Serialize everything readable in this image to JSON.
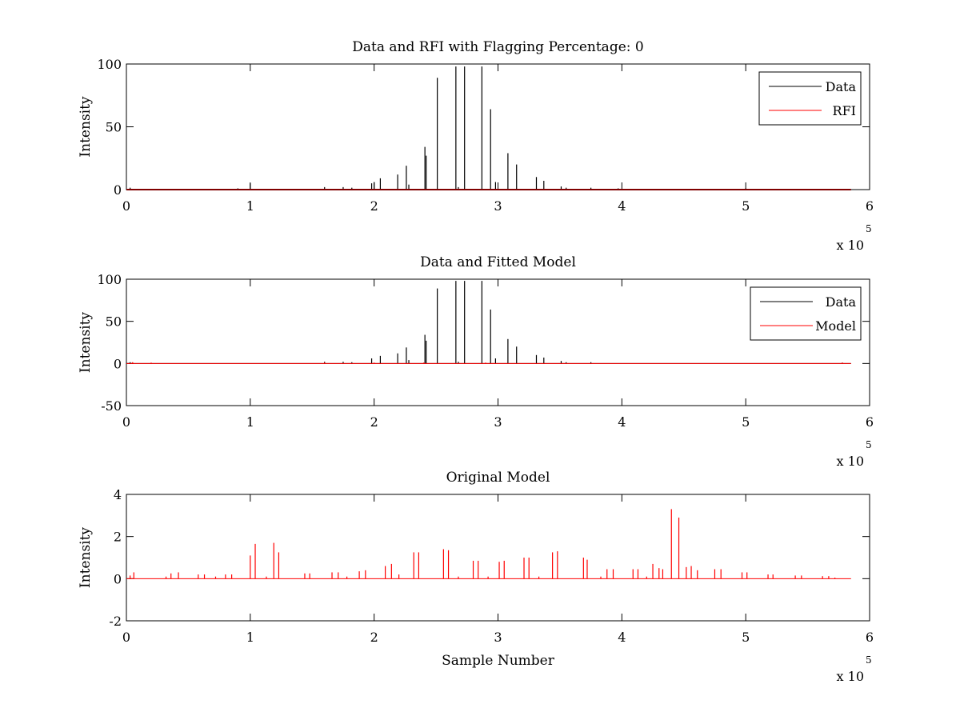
{
  "chart_data": [
    {
      "type": "line",
      "title": "Data and RFI with Flagging Percentage: 0",
      "xlabel": "",
      "ylabel": "Intensity",
      "xlim": [
        0,
        600000
      ],
      "ylim": [
        0,
        100
      ],
      "xticks": [
        0,
        1,
        2,
        3,
        4,
        5,
        6
      ],
      "yticks": [
        0,
        50,
        100
      ],
      "x_multiplier": "x 10",
      "x_multiplier_exp": "5",
      "legend": {
        "position": "top-right",
        "entries": [
          "Data",
          "RFI"
        ]
      },
      "series": [
        {
          "name": "Data",
          "color": "#000000",
          "spikes": [
            [
              3000,
              1.5
            ],
            [
              90000,
              1
            ],
            [
              100000,
              5
            ],
            [
              160000,
              2
            ],
            [
              175000,
              2
            ],
            [
              182000,
              1.5
            ],
            [
              198000,
              5
            ],
            [
              200000,
              6
            ],
            [
              205000,
              9
            ],
            [
              219000,
              12
            ],
            [
              226000,
              19
            ],
            [
              228000,
              4
            ],
            [
              241000,
              34
            ],
            [
              242000,
              27
            ],
            [
              251000,
              89
            ],
            [
              266000,
              98
            ],
            [
              268000,
              2
            ],
            [
              273000,
              98
            ],
            [
              287000,
              98
            ],
            [
              294000,
              64
            ],
            [
              298000,
              6
            ],
            [
              308000,
              29
            ],
            [
              315000,
              20
            ],
            [
              331000,
              10
            ],
            [
              337000,
              7
            ],
            [
              351000,
              2.5
            ],
            [
              355000,
              1.5
            ],
            [
              375000,
              1.5
            ],
            [
              397000,
              1
            ],
            [
              500000,
              1
            ]
          ]
        },
        {
          "name": "RFI",
          "color": "#ff0000",
          "spikes": []
        }
      ]
    },
    {
      "type": "line",
      "title": "Data and Fitted Model",
      "xlabel": "",
      "ylabel": "Intensity",
      "xlim": [
        0,
        600000
      ],
      "ylim": [
        -50,
        100
      ],
      "xticks": [
        0,
        1,
        2,
        3,
        4,
        5,
        6
      ],
      "yticks": [
        -50,
        0,
        50,
        100
      ],
      "x_multiplier": "x 10",
      "x_multiplier_exp": "5",
      "legend": {
        "position": "top-right",
        "entries": [
          "Data",
          "Model"
        ]
      },
      "series": [
        {
          "name": "Data",
          "color": "#000000",
          "spikes": [
            [
              3000,
              1.5
            ],
            [
              160000,
              2
            ],
            [
              175000,
              2
            ],
            [
              182000,
              1.5
            ],
            [
              198000,
              6
            ],
            [
              205000,
              9
            ],
            [
              219000,
              12
            ],
            [
              226000,
              19
            ],
            [
              228000,
              4
            ],
            [
              241000,
              34
            ],
            [
              242000,
              27
            ],
            [
              251000,
              89
            ],
            [
              266000,
              98
            ],
            [
              268000,
              2
            ],
            [
              273000,
              98
            ],
            [
              287000,
              98
            ],
            [
              294000,
              64
            ],
            [
              298000,
              6
            ],
            [
              308000,
              29
            ],
            [
              315000,
              20
            ],
            [
              331000,
              10
            ],
            [
              337000,
              7
            ],
            [
              351000,
              3
            ],
            [
              355000,
              1.5
            ],
            [
              375000,
              1.5
            ],
            [
              578000,
              1
            ]
          ]
        },
        {
          "name": "Model",
          "color": "#ff0000",
          "spikes": [
            [
              5000,
              1.5
            ],
            [
              20000,
              1
            ],
            [
              160000,
              1
            ],
            [
              200000,
              1
            ],
            [
              240000,
              1
            ],
            [
              290000,
              1
            ],
            [
              578000,
              1
            ]
          ]
        }
      ]
    },
    {
      "type": "line",
      "title": "Original Model",
      "xlabel": "Sample Number",
      "ylabel": "Intensity",
      "xlim": [
        0,
        600000
      ],
      "ylim": [
        -2,
        4
      ],
      "xticks": [
        0,
        1,
        2,
        3,
        4,
        5,
        6
      ],
      "yticks": [
        -2,
        0,
        2,
        4
      ],
      "x_multiplier": "x 10",
      "x_multiplier_exp": "5",
      "series": [
        {
          "name": "",
          "color": "#ff0000",
          "spikes": [
            [
              3000,
              0.15
            ],
            [
              6000,
              0.3
            ],
            [
              32000,
              0.1
            ],
            [
              36000,
              0.25
            ],
            [
              42000,
              0.3
            ],
            [
              58000,
              0.2
            ],
            [
              63000,
              0.2
            ],
            [
              72000,
              0.1
            ],
            [
              80000,
              0.2
            ],
            [
              85000,
              0.2
            ],
            [
              100000,
              1.1
            ],
            [
              104000,
              1.65
            ],
            [
              113000,
              0.1
            ],
            [
              119000,
              1.7
            ],
            [
              123000,
              1.25
            ],
            [
              144000,
              0.25
            ],
            [
              148000,
              0.25
            ],
            [
              166000,
              0.3
            ],
            [
              171000,
              0.3
            ],
            [
              178000,
              0.1
            ],
            [
              188000,
              0.35
            ],
            [
              193000,
              0.4
            ],
            [
              209000,
              0.6
            ],
            [
              214000,
              0.7
            ],
            [
              220000,
              0.2
            ],
            [
              232000,
              1.25
            ],
            [
              236000,
              1.25
            ],
            [
              256000,
              1.4
            ],
            [
              260000,
              1.35
            ],
            [
              268000,
              0.1
            ],
            [
              280000,
              0.85
            ],
            [
              284000,
              0.85
            ],
            [
              292000,
              0.1
            ],
            [
              301000,
              0.8
            ],
            [
              305000,
              0.85
            ],
            [
              321000,
              1.0
            ],
            [
              325000,
              1.0
            ],
            [
              333000,
              0.1
            ],
            [
              344000,
              1.25
            ],
            [
              348000,
              1.3
            ],
            [
              369000,
              1.0
            ],
            [
              372000,
              0.9
            ],
            [
              383000,
              0.1
            ],
            [
              388000,
              0.45
            ],
            [
              393000,
              0.45
            ],
            [
              409000,
              0.45
            ],
            [
              413000,
              0.45
            ],
            [
              420000,
              0.1
            ],
            [
              425000,
              0.7
            ],
            [
              430000,
              0.5
            ],
            [
              433000,
              0.45
            ],
            [
              440000,
              3.3
            ],
            [
              446000,
              2.9
            ],
            [
              452000,
              0.55
            ],
            [
              456000,
              0.6
            ],
            [
              461000,
              0.4
            ],
            [
              475000,
              0.45
            ],
            [
              480000,
              0.45
            ],
            [
              497000,
              0.3
            ],
            [
              501000,
              0.3
            ],
            [
              518000,
              0.2
            ],
            [
              522000,
              0.2
            ],
            [
              540000,
              0.15
            ],
            [
              545000,
              0.15
            ],
            [
              562000,
              0.12
            ],
            [
              567000,
              0.12
            ],
            [
              572000,
              0.05
            ]
          ]
        }
      ]
    }
  ]
}
